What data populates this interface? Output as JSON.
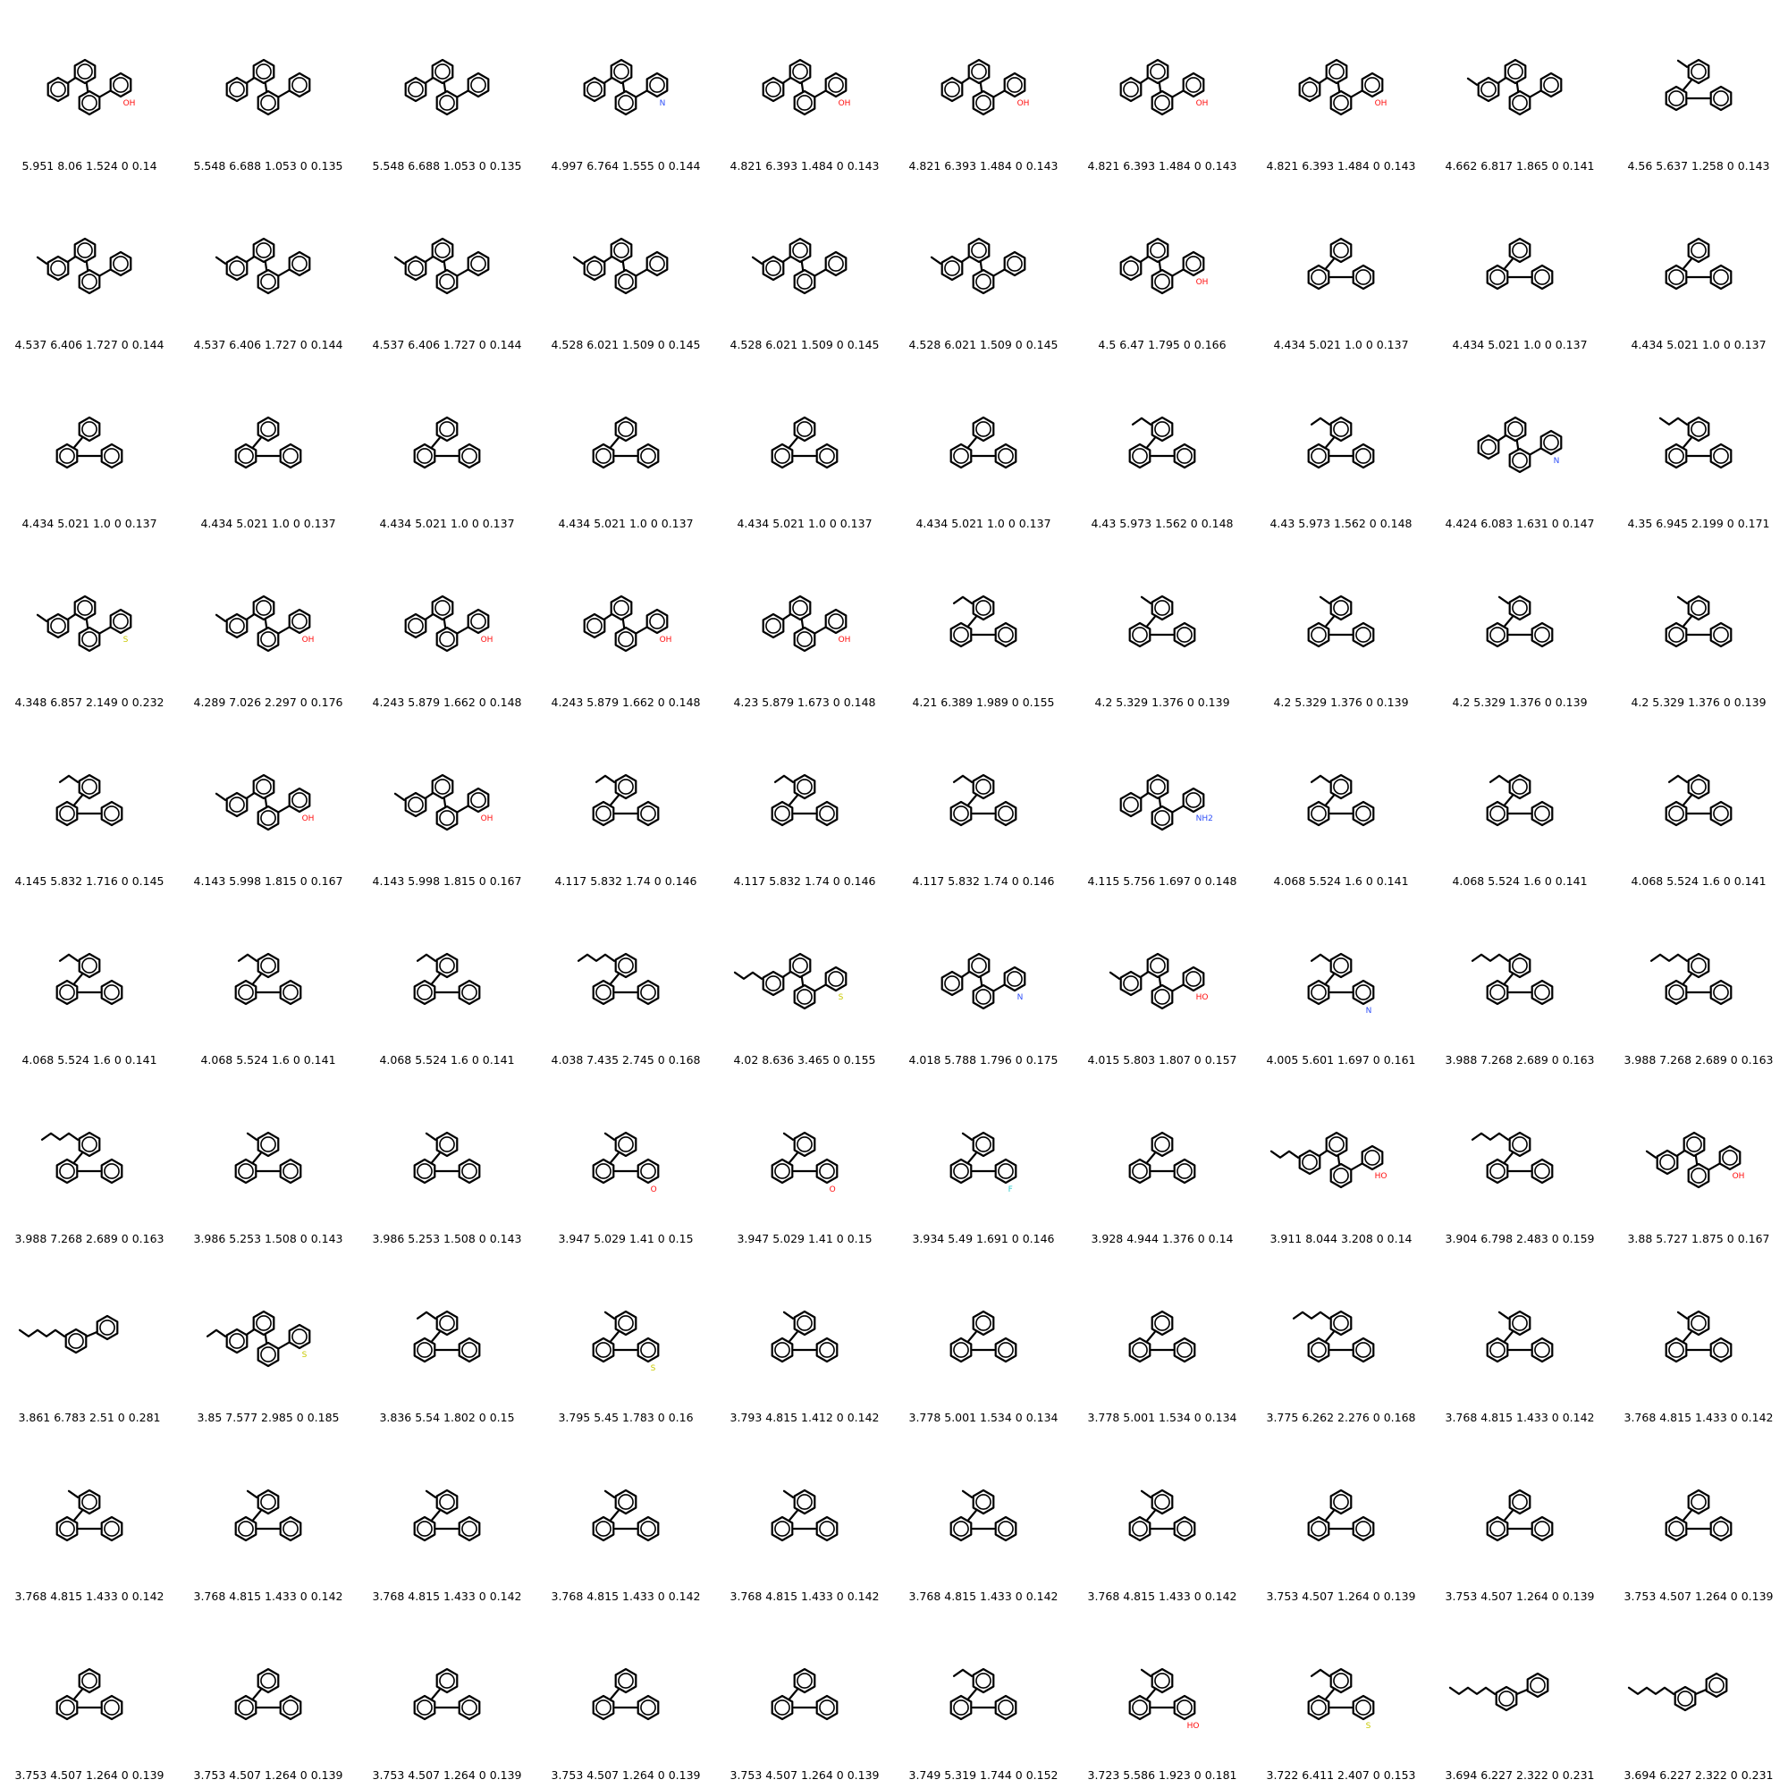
{
  "grid": {
    "rows": 10,
    "cols": 10
  },
  "colors": {
    "bond": "#000000",
    "oxygen": "#ff0d0d",
    "nitrogen": "#3050f8",
    "sulfur": "#c8c800",
    "fluorine": "#33cccc"
  },
  "molecules": [
    {
      "label": "5.951 8.06 1.524 0 0.14",
      "rings": 4,
      "chain": 0,
      "het": "OH",
      "het_color": "oxygen"
    },
    {
      "label": "5.548 6.688 1.053 0 0.135",
      "rings": 4,
      "chain": 0
    },
    {
      "label": "5.548 6.688 1.053 0 0.135",
      "rings": 4,
      "chain": 0
    },
    {
      "label": "4.997 6.764 1.555 0 0.144",
      "rings": 4,
      "chain": 0,
      "het": "N",
      "het_color": "nitrogen"
    },
    {
      "label": "4.821 6.393 1.484 0 0.143",
      "rings": 4,
      "chain": 0,
      "het": "OH",
      "het_color": "oxygen"
    },
    {
      "label": "4.821 6.393 1.484 0 0.143",
      "rings": 4,
      "chain": 0,
      "het": "OH",
      "het_color": "oxygen"
    },
    {
      "label": "4.821 6.393 1.484 0 0.143",
      "rings": 4,
      "chain": 0,
      "het": "OH",
      "het_color": "oxygen"
    },
    {
      "label": "4.821 6.393 1.484 0 0.143",
      "rings": 4,
      "chain": 0,
      "het": "OH",
      "het_color": "oxygen"
    },
    {
      "label": "4.662 6.817 1.865 0 0.141",
      "rings": 4,
      "chain": 1
    },
    {
      "label": "4.56 5.637 1.258 0 0.143",
      "rings": 3,
      "chain": 1
    },
    {
      "label": "4.537 6.406 1.727 0 0.144",
      "rings": 4,
      "chain": 1
    },
    {
      "label": "4.537 6.406 1.727 0 0.144",
      "rings": 4,
      "chain": 1
    },
    {
      "label": "4.537 6.406 1.727 0 0.144",
      "rings": 4,
      "chain": 1
    },
    {
      "label": "4.528 6.021 1.509 0 0.145",
      "rings": 4,
      "chain": 1
    },
    {
      "label": "4.528 6.021 1.509 0 0.145",
      "rings": 4,
      "chain": 1
    },
    {
      "label": "4.528 6.021 1.509 0 0.145",
      "rings": 4,
      "chain": 1
    },
    {
      "label": "4.5 6.47 1.795 0 0.166",
      "rings": 4,
      "chain": 0,
      "het": "OH",
      "het_color": "oxygen"
    },
    {
      "label": "4.434 5.021 1.0 0 0.137",
      "rings": 3,
      "chain": 0
    },
    {
      "label": "4.434 5.021 1.0 0 0.137",
      "rings": 3,
      "chain": 0
    },
    {
      "label": "4.434 5.021 1.0 0 0.137",
      "rings": 3,
      "chain": 0
    },
    {
      "label": "4.434 5.021 1.0 0 0.137",
      "rings": 3,
      "chain": 0
    },
    {
      "label": "4.434 5.021 1.0 0 0.137",
      "rings": 3,
      "chain": 0
    },
    {
      "label": "4.434 5.021 1.0 0 0.137",
      "rings": 3,
      "chain": 0
    },
    {
      "label": "4.434 5.021 1.0 0 0.137",
      "rings": 3,
      "chain": 0
    },
    {
      "label": "4.434 5.021 1.0 0 0.137",
      "rings": 3,
      "chain": 0
    },
    {
      "label": "4.434 5.021 1.0 0 0.137",
      "rings": 3,
      "chain": 0
    },
    {
      "label": "4.43 5.973 1.562 0 0.148",
      "rings": 3,
      "chain": 2
    },
    {
      "label": "4.43 5.973 1.562 0 0.148",
      "rings": 3,
      "chain": 2
    },
    {
      "label": "4.424 6.083 1.631 0 0.147",
      "rings": 4,
      "chain": 0,
      "het": "N",
      "het_color": "nitrogen"
    },
    {
      "label": "4.35 6.945 2.199 0 0.171",
      "rings": 3,
      "chain": 3
    },
    {
      "label": "4.348 6.857 2.149 0 0.232",
      "rings": 4,
      "chain": 1,
      "het": "S",
      "het_color": "sulfur"
    },
    {
      "label": "4.289 7.026 2.297 0 0.176",
      "rings": 4,
      "chain": 1,
      "het": "OH",
      "het_color": "oxygen"
    },
    {
      "label": "4.243 5.879 1.662 0 0.148",
      "rings": 4,
      "chain": 0,
      "het": "OH",
      "het_color": "oxygen"
    },
    {
      "label": "4.243 5.879 1.662 0 0.148",
      "rings": 4,
      "chain": 0,
      "het": "OH",
      "het_color": "oxygen"
    },
    {
      "label": "4.23 5.879 1.673 0 0.148",
      "rings": 4,
      "chain": 0,
      "het": "OH",
      "het_color": "oxygen"
    },
    {
      "label": "4.21 6.389 1.989 0 0.155",
      "rings": 3,
      "chain": 2
    },
    {
      "label": "4.2 5.329 1.376 0 0.139",
      "rings": 3,
      "chain": 1
    },
    {
      "label": "4.2 5.329 1.376 0 0.139",
      "rings": 3,
      "chain": 1
    },
    {
      "label": "4.2 5.329 1.376 0 0.139",
      "rings": 3,
      "chain": 1
    },
    {
      "label": "4.2 5.329 1.376 0 0.139",
      "rings": 3,
      "chain": 1
    },
    {
      "label": "4.145 5.832 1.716 0 0.145",
      "rings": 3,
      "chain": 2
    },
    {
      "label": "4.143 5.998 1.815 0 0.167",
      "rings": 4,
      "chain": 1,
      "het": "OH",
      "het_color": "oxygen"
    },
    {
      "label": "4.143 5.998 1.815 0 0.167",
      "rings": 4,
      "chain": 1,
      "het": "OH",
      "het_color": "oxygen"
    },
    {
      "label": "4.117 5.832 1.74 0 0.146",
      "rings": 3,
      "chain": 2
    },
    {
      "label": "4.117 5.832 1.74 0 0.146",
      "rings": 3,
      "chain": 2
    },
    {
      "label": "4.117 5.832 1.74 0 0.146",
      "rings": 3,
      "chain": 2
    },
    {
      "label": "4.115 5.756 1.697 0 0.148",
      "rings": 4,
      "chain": 0,
      "het": "NH2",
      "het_color": "nitrogen"
    },
    {
      "label": "4.068 5.524 1.6 0 0.141",
      "rings": 3,
      "chain": 2
    },
    {
      "label": "4.068 5.524 1.6 0 0.141",
      "rings": 3,
      "chain": 2
    },
    {
      "label": "4.068 5.524 1.6 0 0.141",
      "rings": 3,
      "chain": 2
    },
    {
      "label": "4.068 5.524 1.6 0 0.141",
      "rings": 3,
      "chain": 2
    },
    {
      "label": "4.068 5.524 1.6 0 0.141",
      "rings": 3,
      "chain": 2
    },
    {
      "label": "4.068 5.524 1.6 0 0.141",
      "rings": 3,
      "chain": 2
    },
    {
      "label": "4.038 7.435 2.745 0 0.168",
      "rings": 3,
      "chain": 4
    },
    {
      "label": "4.02 8.636 3.465 0 0.155",
      "rings": 4,
      "chain": 3,
      "het": "S",
      "het_color": "sulfur"
    },
    {
      "label": "4.018 5.788 1.796 0 0.175",
      "rings": 4,
      "chain": 0,
      "het": "N",
      "het_color": "nitrogen"
    },
    {
      "label": "4.015 5.803 1.807 0 0.157",
      "rings": 4,
      "chain": 1,
      "het": "HO",
      "het_color": "oxygen"
    },
    {
      "label": "4.005 5.601 1.697 0 0.161",
      "rings": 3,
      "chain": 2,
      "het": "N",
      "het_color": "nitrogen"
    },
    {
      "label": "3.988 7.268 2.689 0 0.163",
      "rings": 3,
      "chain": 4
    },
    {
      "label": "3.988 7.268 2.689 0 0.163",
      "rings": 3,
      "chain": 4
    },
    {
      "label": "3.988 7.268 2.689 0 0.163",
      "rings": 3,
      "chain": 4
    },
    {
      "label": "3.986 5.253 1.508 0 0.143",
      "rings": 3,
      "chain": 1
    },
    {
      "label": "3.986 5.253 1.508 0 0.143",
      "rings": 3,
      "chain": 1
    },
    {
      "label": "3.947 5.029 1.41 0 0.15",
      "rings": 3,
      "chain": 1,
      "het": "O",
      "het_color": "oxygen"
    },
    {
      "label": "3.947 5.029 1.41 0 0.15",
      "rings": 3,
      "chain": 1,
      "het": "O",
      "het_color": "oxygen"
    },
    {
      "label": "3.934 5.49 1.691 0 0.146",
      "rings": 3,
      "chain": 1,
      "het": "F",
      "het_color": "fluorine"
    },
    {
      "label": "3.928 4.944 1.376 0 0.14",
      "rings": 3,
      "chain": 0
    },
    {
      "label": "3.911 8.044 3.208 0 0.14",
      "rings": 4,
      "chain": 3,
      "het": "HO",
      "het_color": "oxygen"
    },
    {
      "label": "3.904 6.798 2.483 0 0.159",
      "rings": 3,
      "chain": 4
    },
    {
      "label": "3.88 5.727 1.875 0 0.167",
      "rings": 4,
      "chain": 1,
      "het": "OH",
      "het_color": "oxygen"
    },
    {
      "label": "3.861 6.783 2.51 0 0.281",
      "rings": 2,
      "chain": 5
    },
    {
      "label": "3.85 7.577 2.985 0 0.185",
      "rings": 4,
      "chain": 2,
      "het": "S",
      "het_color": "sulfur"
    },
    {
      "label": "3.836 5.54 1.802 0 0.15",
      "rings": 3,
      "chain": 2
    },
    {
      "label": "3.795 5.45 1.783 0 0.16",
      "rings": 3,
      "chain": 1,
      "het": "S",
      "het_color": "sulfur"
    },
    {
      "label": "3.793 4.815 1.412 0 0.142",
      "rings": 3,
      "chain": 1
    },
    {
      "label": "3.778 5.001 1.534 0 0.134",
      "rings": 3,
      "chain": 0
    },
    {
      "label": "3.778 5.001 1.534 0 0.134",
      "rings": 3,
      "chain": 0
    },
    {
      "label": "3.775 6.262 2.276 0 0.168",
      "rings": 3,
      "chain": 4
    },
    {
      "label": "3.768 4.815 1.433 0 0.142",
      "rings": 3,
      "chain": 1
    },
    {
      "label": "3.768 4.815 1.433 0 0.142",
      "rings": 3,
      "chain": 1
    },
    {
      "label": "3.768 4.815 1.433 0 0.142",
      "rings": 3,
      "chain": 1
    },
    {
      "label": "3.768 4.815 1.433 0 0.142",
      "rings": 3,
      "chain": 1
    },
    {
      "label": "3.768 4.815 1.433 0 0.142",
      "rings": 3,
      "chain": 1
    },
    {
      "label": "3.768 4.815 1.433 0 0.142",
      "rings": 3,
      "chain": 1
    },
    {
      "label": "3.768 4.815 1.433 0 0.142",
      "rings": 3,
      "chain": 1
    },
    {
      "label": "3.768 4.815 1.433 0 0.142",
      "rings": 3,
      "chain": 1
    },
    {
      "label": "3.768 4.815 1.433 0 0.142",
      "rings": 3,
      "chain": 1
    },
    {
      "label": "3.753 4.507 1.264 0 0.139",
      "rings": 3,
      "chain": 0
    },
    {
      "label": "3.753 4.507 1.264 0 0.139",
      "rings": 3,
      "chain": 0
    },
    {
      "label": "3.753 4.507 1.264 0 0.139",
      "rings": 3,
      "chain": 0
    },
    {
      "label": "3.753 4.507 1.264 0 0.139",
      "rings": 3,
      "chain": 0
    },
    {
      "label": "3.753 4.507 1.264 0 0.139",
      "rings": 3,
      "chain": 0
    },
    {
      "label": "3.753 4.507 1.264 0 0.139",
      "rings": 3,
      "chain": 0
    },
    {
      "label": "3.753 4.507 1.264 0 0.139",
      "rings": 3,
      "chain": 0
    },
    {
      "label": "3.753 4.507 1.264 0 0.139",
      "rings": 3,
      "chain": 0
    },
    {
      "label": "3.749 5.319 1.744 0 0.152",
      "rings": 3,
      "chain": 2
    },
    {
      "label": "3.723 5.586 1.923 0 0.181",
      "rings": 3,
      "chain": 1,
      "het": "HO",
      "het_color": "oxygen"
    },
    {
      "label": "3.722 6.411 2.407 0 0.153",
      "rings": 3,
      "chain": 2,
      "het": "S",
      "het_color": "sulfur"
    },
    {
      "label": "3.694 6.227 2.322 0 0.231",
      "rings": 2,
      "chain": 5
    },
    {
      "label": "3.694 6.227 2.322 0 0.231",
      "rings": 2,
      "chain": 5
    }
  ]
}
